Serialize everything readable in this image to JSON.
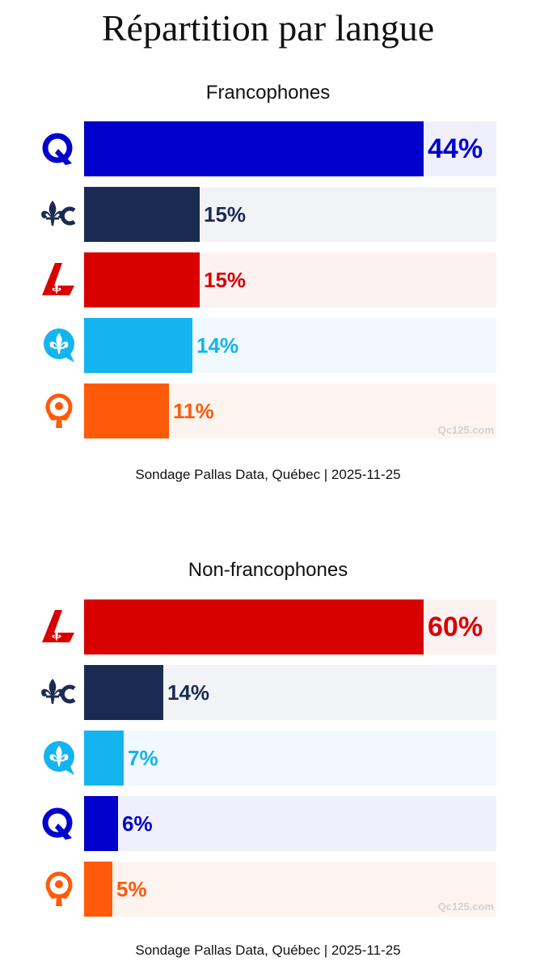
{
  "title": "Répartition par langue",
  "watermark": "Qc125.com",
  "parties": {
    "caq": {
      "color": "#0000cc",
      "bg": "#f0f0fd",
      "icon": "caq-q-icon"
    },
    "pcq": {
      "color": "#1b2b52",
      "bg": "#f2f3f7",
      "icon": "fleur-de-lis-c-icon"
    },
    "plq": {
      "color": "#d90000",
      "bg": "#fdf2f2",
      "icon": "liberal-l-icon"
    },
    "pq": {
      "color": "#14b4f0",
      "bg": "#f0f9fd",
      "icon": "speech-fleur-de-lis-icon"
    },
    "qs": {
      "color": "#ff5a0a",
      "bg": "#fdf4f0",
      "icon": "qs-figure-icon"
    }
  },
  "chart_data": [
    {
      "type": "bar",
      "title": "Francophones",
      "source": "Sondage Pallas Data, Québec | 2025-11-25",
      "max": 44,
      "bars": [
        {
          "party": "caq",
          "value": 44,
          "label": "44%"
        },
        {
          "party": "pcq",
          "value": 15,
          "label": "15%"
        },
        {
          "party": "plq",
          "value": 15,
          "label": "15%"
        },
        {
          "party": "pq",
          "value": 14,
          "label": "14%"
        },
        {
          "party": "qs",
          "value": 11,
          "label": "11%"
        }
      ]
    },
    {
      "type": "bar",
      "title": "Non-francophones",
      "source": "Sondage Pallas Data, Québec | 2025-11-25",
      "max": 60,
      "bars": [
        {
          "party": "plq",
          "value": 60,
          "label": "60%"
        },
        {
          "party": "pcq",
          "value": 14,
          "label": "14%"
        },
        {
          "party": "pq",
          "value": 7,
          "label": "7%"
        },
        {
          "party": "caq",
          "value": 6,
          "label": "6%"
        },
        {
          "party": "qs",
          "value": 5,
          "label": "5%"
        }
      ]
    }
  ]
}
